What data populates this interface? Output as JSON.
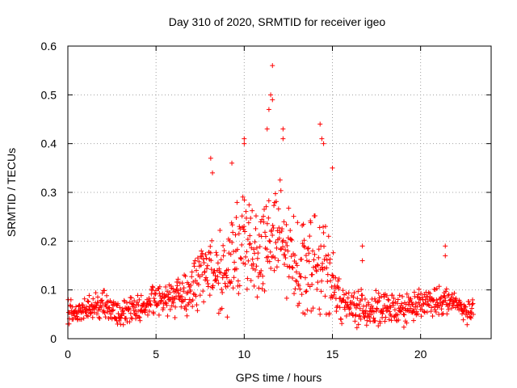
{
  "chart_data": {
    "type": "scatter",
    "title": "Day 310 of 2020, SRMTID for receiver igeo",
    "xlabel": "GPS time / hours",
    "ylabel": "SRMTID / TECUs",
    "xlim": [
      0,
      24
    ],
    "ylim": [
      0,
      0.6
    ],
    "xticks": [
      0,
      5,
      10,
      15,
      20
    ],
    "xtick_labels": [
      "0",
      "5",
      "10",
      "15",
      "20"
    ],
    "yticks": [
      0,
      0.1,
      0.2,
      0.3,
      0.4,
      0.5,
      0.6
    ],
    "ytick_labels": [
      "0",
      "0.1",
      "0.2",
      "0.3",
      "0.4",
      "0.5",
      "0.6"
    ],
    "grid": true,
    "marker": "+",
    "color": "#ff0000",
    "series": [
      {
        "name": "SRMTID",
        "profile": [
          [
            0.0,
            0.05
          ],
          [
            1.0,
            0.06
          ],
          [
            2.0,
            0.07
          ],
          [
            3.0,
            0.05
          ],
          [
            4.0,
            0.06
          ],
          [
            5.0,
            0.08
          ],
          [
            6.0,
            0.09
          ],
          [
            7.0,
            0.1
          ],
          [
            8.0,
            0.15
          ],
          [
            9.0,
            0.13
          ],
          [
            10.0,
            0.2
          ],
          [
            11.0,
            0.18
          ],
          [
            11.5,
            0.22
          ],
          [
            12.0,
            0.2
          ],
          [
            13.0,
            0.15
          ],
          [
            14.0,
            0.16
          ],
          [
            15.0,
            0.12
          ],
          [
            15.5,
            0.07
          ],
          [
            17.0,
            0.06
          ],
          [
            19.0,
            0.06
          ],
          [
            20.0,
            0.07
          ],
          [
            21.5,
            0.08
          ],
          [
            23.0,
            0.05
          ]
        ],
        "spread": [
          [
            0.0,
            0.025
          ],
          [
            5.0,
            0.03
          ],
          [
            7.5,
            0.06
          ],
          [
            9.0,
            0.09
          ],
          [
            10.0,
            0.1
          ],
          [
            11.5,
            0.13
          ],
          [
            13.0,
            0.09
          ],
          [
            14.5,
            0.1
          ],
          [
            15.2,
            0.04
          ],
          [
            23.0,
            0.025
          ]
        ],
        "peaks": [
          [
            8.1,
            0.37
          ],
          [
            8.2,
            0.34
          ],
          [
            9.3,
            0.36
          ],
          [
            10.0,
            0.41
          ],
          [
            10.0,
            0.4
          ],
          [
            11.3,
            0.43
          ],
          [
            11.4,
            0.47
          ],
          [
            11.5,
            0.5
          ],
          [
            11.6,
            0.56
          ],
          [
            11.6,
            0.49
          ],
          [
            12.2,
            0.43
          ],
          [
            12.2,
            0.41
          ],
          [
            14.3,
            0.44
          ],
          [
            14.4,
            0.41
          ],
          [
            14.5,
            0.4
          ],
          [
            15.0,
            0.35
          ],
          [
            16.7,
            0.19
          ],
          [
            16.7,
            0.16
          ],
          [
            21.4,
            0.19
          ],
          [
            21.4,
            0.17
          ]
        ],
        "x_step": 0.022
      }
    ]
  }
}
